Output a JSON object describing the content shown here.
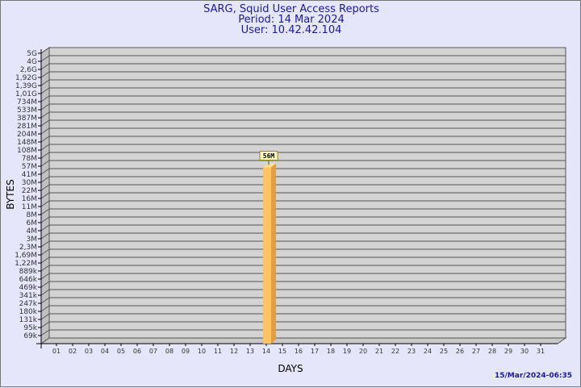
{
  "title": [
    "SARG, Squid User Access Reports",
    "Period: 14 Mar 2024",
    "User: 10.42.42.104"
  ],
  "timestamp": "15/Mar/2024-06:35",
  "colors": {
    "background": "#e6e6fa",
    "plot": "#d3d3d3",
    "bar_front": "#fdc262",
    "bar_side": "#e0a040",
    "title": "#1a1a9a"
  },
  "chart_data": {
    "type": "bar",
    "xlabel": "DAYS",
    "ylabel": "BYTES",
    "y_scale": "log-like",
    "grid": true,
    "y_ticks": [
      "5G",
      "4G",
      "2,6G",
      "1,92G",
      "1,39G",
      "1,01G",
      "734M",
      "533M",
      "387M",
      "281M",
      "204M",
      "148M",
      "108M",
      "78M",
      "57M",
      "41M",
      "30M",
      "22M",
      "16M",
      "11M",
      "8M",
      "6M",
      "4M",
      "3M",
      "2,3M",
      "1,69M",
      "1,22M",
      "889k",
      "646k",
      "469k",
      "341k",
      "247k",
      "180k",
      "131k",
      "95k",
      "69k"
    ],
    "categories": [
      "01",
      "02",
      "03",
      "04",
      "05",
      "06",
      "07",
      "08",
      "09",
      "10",
      "11",
      "12",
      "13",
      "14",
      "15",
      "16",
      "17",
      "18",
      "19",
      "20",
      "21",
      "22",
      "23",
      "24",
      "25",
      "26",
      "27",
      "28",
      "29",
      "30",
      "31"
    ],
    "bars": [
      {
        "day": "14",
        "value_label": "56M",
        "value_bytes": 56000000
      }
    ]
  }
}
